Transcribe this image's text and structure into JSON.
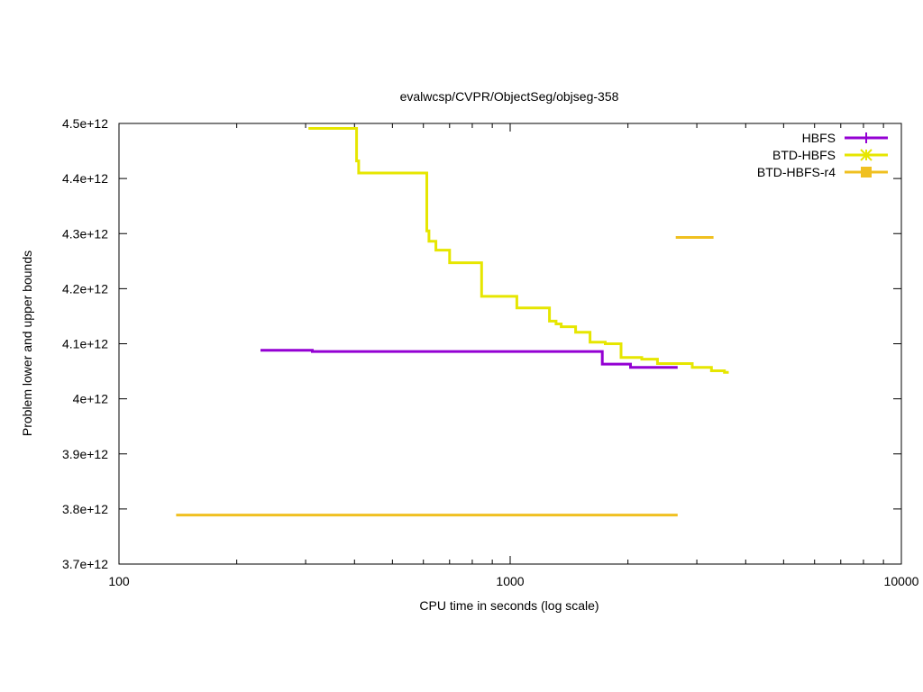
{
  "chart_data": {
    "type": "line",
    "title": "evalwcsp/CVPR/ObjectSeg/objseg-358",
    "xlabel": "CPU time in seconds (log scale)",
    "ylabel": "Problem lower and upper bounds",
    "xscale": "log",
    "xlim": [
      100,
      10000
    ],
    "ylim": [
      3700000000000.0,
      4500000000000.0
    ],
    "x_ticks": [
      {
        "value": 100,
        "label": "100"
      },
      {
        "value": 1000,
        "label": "1000"
      },
      {
        "value": 10000,
        "label": "10000"
      }
    ],
    "y_ticks": [
      {
        "value": 3700000000000.0,
        "label": "3.7e+12"
      },
      {
        "value": 3800000000000.0,
        "label": "3.8e+12"
      },
      {
        "value": 3900000000000.0,
        "label": "3.9e+12"
      },
      {
        "value": 4000000000000.0,
        "label": "4e+12"
      },
      {
        "value": 4100000000000.0,
        "label": "4.1e+12"
      },
      {
        "value": 4200000000000.0,
        "label": "4.2e+12"
      },
      {
        "value": 4300000000000.0,
        "label": "4.3e+12"
      },
      {
        "value": 4400000000000.0,
        "label": "4.4e+12"
      },
      {
        "value": 4500000000000.0,
        "label": "4.5e+12"
      }
    ],
    "grid": false,
    "legend_position": "top-right",
    "series": [
      {
        "name": "HBFS",
        "color": "#9400d3",
        "marker": "plus",
        "step": true,
        "segments": [
          [
            [
              230,
              4088000000000.0
            ],
            [
              312,
              4088000000000.0
            ],
            [
              312,
              4086000000000.0
            ],
            [
              1720,
              4086000000000.0
            ],
            [
              1720,
              4063000000000.0
            ],
            [
              2030,
              4063000000000.0
            ],
            [
              2030,
              4057000000000.0
            ],
            [
              2680,
              4057000000000.0
            ]
          ]
        ]
      },
      {
        "name": "BTD-HBFS",
        "color": "#e6e600",
        "marker": "star",
        "step": true,
        "segments": [
          [
            [
              305,
              4491000000000.0
            ],
            [
              405,
              4491000000000.0
            ],
            [
              405,
              4432000000000.0
            ],
            [
              410,
              4432000000000.0
            ],
            [
              410,
              4410000000000.0
            ],
            [
              612,
              4410000000000.0
            ],
            [
              612,
              4305000000000.0
            ],
            [
              620,
              4305000000000.0
            ],
            [
              620,
              4286000000000.0
            ],
            [
              646,
              4286000000000.0
            ],
            [
              646,
              4270000000000.0
            ],
            [
              700,
              4270000000000.0
            ],
            [
              700,
              4247000000000.0
            ],
            [
              845,
              4247000000000.0
            ],
            [
              845,
              4186000000000.0
            ],
            [
              1040,
              4186000000000.0
            ],
            [
              1040,
              4165000000000.0
            ],
            [
              1260,
              4165000000000.0
            ],
            [
              1260,
              4141000000000.0
            ],
            [
              1310,
              4141000000000.0
            ],
            [
              1310,
              4136000000000.0
            ],
            [
              1350,
              4136000000000.0
            ],
            [
              1350,
              4131000000000.0
            ],
            [
              1470,
              4131000000000.0
            ],
            [
              1470,
              4121000000000.0
            ],
            [
              1600,
              4121000000000.0
            ],
            [
              1600,
              4103000000000.0
            ],
            [
              1750,
              4103000000000.0
            ],
            [
              1750,
              4100000000000.0
            ],
            [
              1920,
              4100000000000.0
            ],
            [
              1920,
              4075000000000.0
            ],
            [
              2170,
              4075000000000.0
            ],
            [
              2170,
              4072000000000.0
            ],
            [
              2380,
              4072000000000.0
            ],
            [
              2380,
              4064000000000.0
            ],
            [
              2920,
              4064000000000.0
            ],
            [
              2920,
              4057000000000.0
            ],
            [
              3270,
              4057000000000.0
            ],
            [
              3270,
              4051000000000.0
            ],
            [
              3530,
              4051000000000.0
            ],
            [
              3530,
              4048000000000.0
            ],
            [
              3620,
              4048000000000.0
            ]
          ]
        ]
      },
      {
        "name": "BTD-HBFS-r4",
        "color": "#f0c020",
        "marker": "square",
        "step": true,
        "segments": [
          [
            [
              140,
              3789000000000.0
            ],
            [
              2680,
              3789000000000.0
            ]
          ],
          [
            [
              2650,
              4293000000000.0
            ],
            [
              3310,
              4293000000000.0
            ]
          ]
        ]
      }
    ]
  }
}
